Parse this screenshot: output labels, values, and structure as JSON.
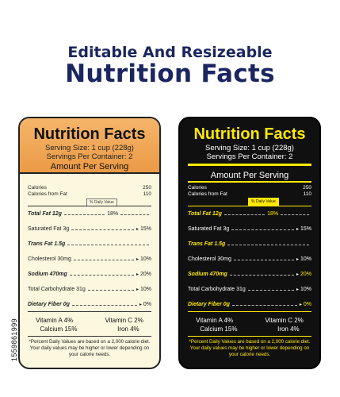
{
  "heading": {
    "line1": "Editable And Resizeable",
    "line2": "Nutrition Facts"
  },
  "side_id": "1559861999",
  "label": {
    "title": "Nutrition Facts",
    "serving_size": "Serving Size: 1 cup (228g)",
    "servings_per_container": "Servings Per Container: 2",
    "amount_per_serving": "Amount Per Serving",
    "calories_label": "Calories",
    "calories_value": "250",
    "calories_fat_label": "Calories from Fat",
    "calories_fat_value": "110",
    "daily_value_label": "% Daily Value",
    "nutrients": [
      {
        "name": "Total Fat 12g",
        "pct": "18%"
      },
      {
        "name": "Saturated Fat 3g",
        "pct": "15%"
      },
      {
        "name": "Trans Fat 1.5g",
        "pct": ""
      },
      {
        "name": "Cholesterol 30mg",
        "pct": "10%"
      },
      {
        "name": "Sodium 470mg",
        "pct": "20%"
      },
      {
        "name": "Total Carbohydrate 31g",
        "pct": "10%"
      },
      {
        "name": "Dietary Fiber 0g",
        "pct": "0%"
      }
    ],
    "vitamins": {
      "vitamin_a": "Vitamin A 4%",
      "vitamin_c": "Vitamin C 2%",
      "calcium": "Calcium 15%",
      "iron": "Iron 4%"
    },
    "footnote": "*Percent Daily Values are based on a 2,000 calorie diet. Your daily values may be higher or lower depending on your calorie needs."
  },
  "colors": {
    "heading": "#1b2660",
    "light_header": "#eb9a45",
    "light_bg": "#fbf8df",
    "dark_bg": "#101010",
    "dark_accent": "#ffe800"
  }
}
